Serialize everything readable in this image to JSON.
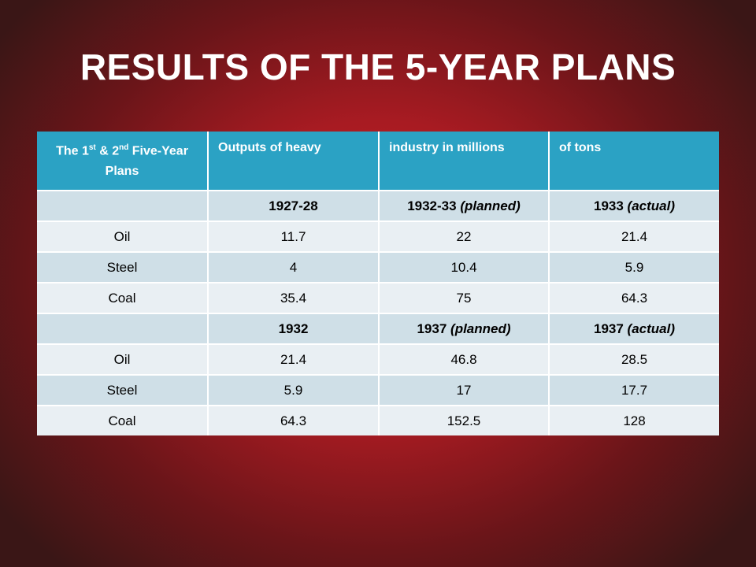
{
  "slide": {
    "title": "RESULTS OF THE 5-YEAR PLANS"
  },
  "table": {
    "header": {
      "col1_part1": "The 1",
      "col1_sup1": "st",
      "col1_part2": " & 2",
      "col1_sup2": "nd",
      "col1_part3": " Five-Year Plans",
      "col2": "Outputs of heavy",
      "col3": "industry in millions",
      "col4": "of tons"
    },
    "blocks": [
      {
        "years": [
          "1927-28",
          "1932-33",
          "1933"
        ],
        "year_notes": [
          "",
          "(planned)",
          "(actual)"
        ],
        "rows": [
          {
            "label": "Oil",
            "values": [
              "11.7",
              "22",
              "21.4"
            ]
          },
          {
            "label": "Steel",
            "values": [
              "4",
              "10.4",
              "5.9"
            ]
          },
          {
            "label": "Coal",
            "values": [
              "35.4",
              "75",
              "64.3"
            ]
          }
        ]
      },
      {
        "years": [
          "1932",
          "1937",
          "1937"
        ],
        "year_notes": [
          "",
          "(planned)",
          "(actual)"
        ],
        "rows": [
          {
            "label": "Oil",
            "values": [
              "21.4",
              "46.8",
              "28.5"
            ]
          },
          {
            "label": "Steel",
            "values": [
              "5.9",
              "17",
              "17.7"
            ]
          },
          {
            "label": "Coal",
            "values": [
              "64.3",
              "152.5",
              "128"
            ]
          }
        ]
      }
    ]
  },
  "colors": {
    "header_bg": "#2ba2c4",
    "row_dark": "#cfdfe7",
    "row_light": "#e9eff3",
    "background_center": "#c42129",
    "background_edge": "#3a1616"
  }
}
